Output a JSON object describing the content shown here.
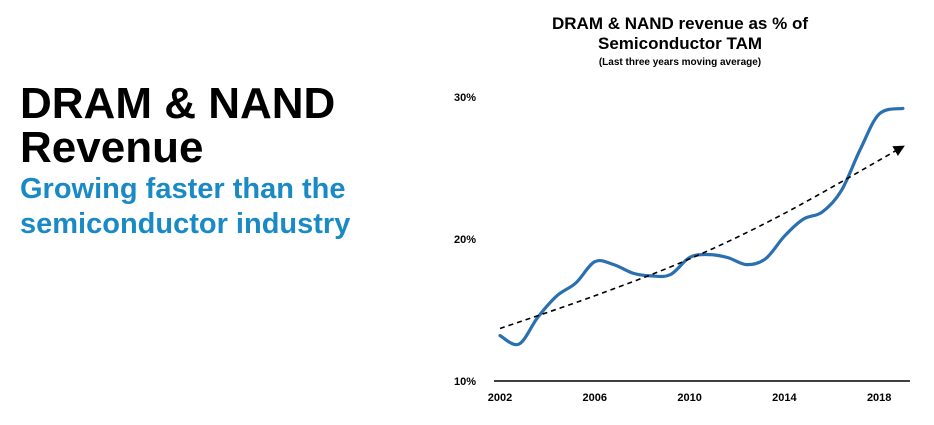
{
  "headline": {
    "title_line1": "DRAM & NAND",
    "title_line2": "Revenue",
    "subtitle_line1": "Growing faster than the",
    "subtitle_line2": "semiconductor industry"
  },
  "colors": {
    "accent": "#1a8ac6",
    "line": "#2a6fb0",
    "trend": "#000000"
  },
  "chart_data": {
    "type": "line",
    "title_line1": "DRAM & NAND revenue as % of",
    "title_line2": "Semiconductor TAM",
    "subtitle": "(Last three years moving average)",
    "xlabel": "",
    "ylabel": "",
    "xlim": [
      2002,
      2019.3
    ],
    "ylim": [
      10,
      30
    ],
    "x_ticks": [
      2002,
      2006,
      2010,
      2014,
      2018
    ],
    "y_ticks": [
      10,
      20,
      30
    ],
    "y_tick_labels": [
      "10%",
      "20%",
      "30%"
    ],
    "grid": false,
    "legend": "none",
    "series": [
      {
        "style": "solid",
        "x": [
          2002.0,
          2002.8,
          2003.6,
          2004.4,
          2005.2,
          2006.0,
          2006.8,
          2007.6,
          2008.4,
          2009.2,
          2010.0,
          2010.8,
          2011.6,
          2012.4,
          2013.2,
          2014.0,
          2014.8,
          2015.6,
          2016.4,
          2017.2,
          2018.0,
          2019.0
        ],
        "y": [
          13.2,
          12.6,
          14.5,
          16.0,
          16.9,
          18.4,
          18.2,
          17.6,
          17.4,
          17.5,
          18.7,
          18.9,
          18.7,
          18.2,
          18.6,
          20.2,
          21.4,
          21.9,
          23.4,
          26.3,
          28.8,
          29.2
        ]
      },
      {
        "style": "dashed-arrow",
        "x": [
          2002.0,
          2006.0,
          2010.0,
          2014.0,
          2019.0
        ],
        "y": [
          13.7,
          16.0,
          18.6,
          21.8,
          26.5
        ]
      }
    ]
  }
}
